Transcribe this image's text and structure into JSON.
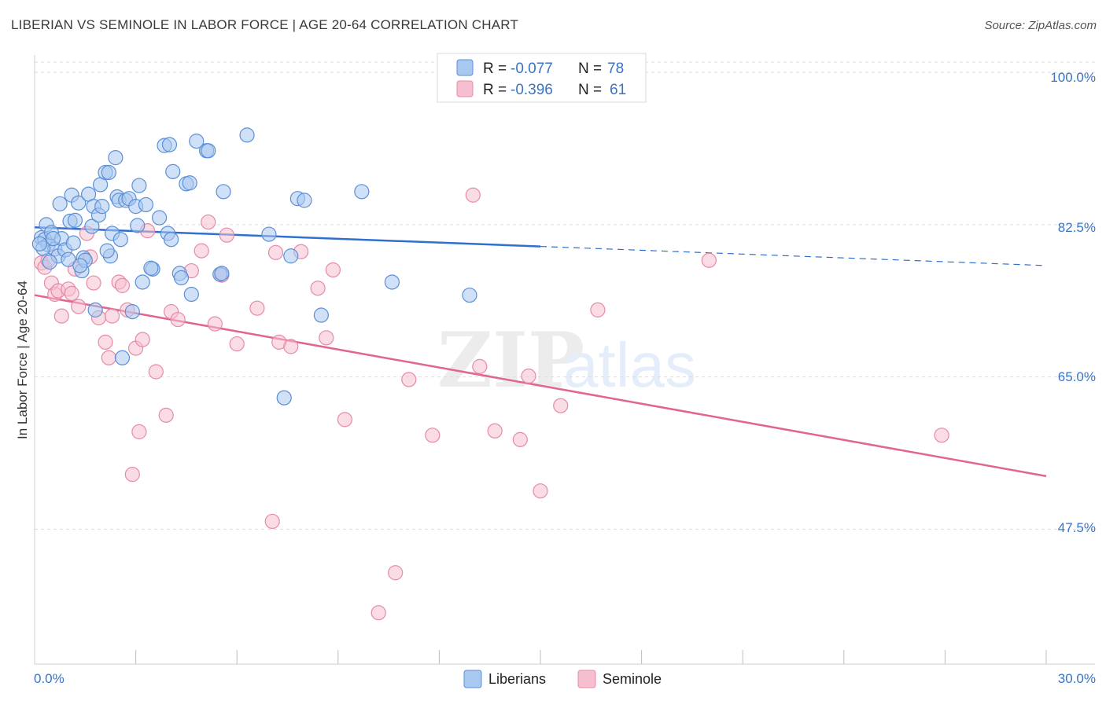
{
  "title": "LIBERIAN VS SEMINOLE IN LABOR FORCE | AGE 20-64 CORRELATION CHART",
  "source": "Source: ZipAtlas.com",
  "watermark": {
    "zip": "ZIP",
    "atlas": "atlas"
  },
  "colors": {
    "blue_fill": "#a9c8f0",
    "blue_stroke": "#5b8fd6",
    "blue_line": "#2f6fcf",
    "pink_fill": "#f6bfd0",
    "pink_stroke": "#e58aa8",
    "pink_line": "#e0658f",
    "tick_text": "#3b73c4",
    "grid": "#dcdcdc"
  },
  "legend": {
    "rows": [
      {
        "r_label": "R = ",
        "r_value": "-0.077",
        "n_label": "N = ",
        "n_value": "78"
      },
      {
        "r_label": "R = ",
        "r_value": "-0.396",
        "n_label": "N = ",
        "n_value": "61"
      }
    ]
  },
  "chart_data": {
    "type": "scatter",
    "title": "LIBERIAN VS SEMINOLE IN LABOR FORCE | AGE 20-64 CORRELATION CHART",
    "xlabel": "",
    "ylabel": "In Labor Force | Age 20-64",
    "xlim": [
      0,
      30
    ],
    "ylim": [
      32,
      102
    ],
    "x_tick_labels": [
      "0.0%",
      "30.0%"
    ],
    "y_ticks": [
      47.5,
      65.0,
      82.5,
      100.0
    ],
    "y_tick_labels": [
      "47.5%",
      "65.0%",
      "82.5%",
      "100.0%"
    ],
    "grid": true,
    "legend_position": "top-center",
    "series": [
      {
        "name": "Liberians",
        "color": "#a9c8f0",
        "trend": {
          "x": [
            0,
            15
          ],
          "y": [
            82.2,
            80.0
          ],
          "dashed_to": [
            30,
            77.8
          ]
        },
        "points": [
          [
            0.2,
            81.0
          ],
          [
            0.3,
            80.8
          ],
          [
            0.35,
            82.5
          ],
          [
            0.4,
            80.2
          ],
          [
            0.5,
            81.6
          ],
          [
            0.6,
            79.7
          ],
          [
            0.7,
            78.9
          ],
          [
            0.75,
            84.9
          ],
          [
            0.8,
            80.9
          ],
          [
            0.9,
            79.6
          ],
          [
            1.0,
            78.5
          ],
          [
            1.05,
            82.9
          ],
          [
            1.1,
            85.9
          ],
          [
            1.2,
            83.0
          ],
          [
            1.3,
            85.0
          ],
          [
            1.4,
            77.2
          ],
          [
            1.45,
            78.7
          ],
          [
            1.5,
            78.4
          ],
          [
            1.6,
            86.0
          ],
          [
            1.7,
            82.3
          ],
          [
            1.75,
            84.6
          ],
          [
            1.8,
            72.7
          ],
          [
            1.9,
            83.6
          ],
          [
            1.95,
            87.1
          ],
          [
            2.0,
            84.6
          ],
          [
            2.1,
            88.5
          ],
          [
            2.2,
            88.5
          ],
          [
            2.25,
            78.9
          ],
          [
            2.3,
            81.5
          ],
          [
            2.4,
            90.2
          ],
          [
            2.45,
            85.7
          ],
          [
            2.5,
            85.3
          ],
          [
            2.55,
            80.8
          ],
          [
            2.6,
            67.2
          ],
          [
            2.7,
            85.3
          ],
          [
            2.8,
            85.5
          ],
          [
            2.9,
            72.5
          ],
          [
            3.0,
            84.6
          ],
          [
            3.05,
            82.4
          ],
          [
            3.1,
            87.0
          ],
          [
            3.2,
            75.9
          ],
          [
            3.3,
            84.8
          ],
          [
            3.5,
            77.4
          ],
          [
            3.7,
            83.3
          ],
          [
            3.85,
            91.6
          ],
          [
            3.95,
            81.5
          ],
          [
            4.0,
            91.7
          ],
          [
            4.05,
            80.8
          ],
          [
            4.1,
            88.6
          ],
          [
            4.3,
            76.9
          ],
          [
            4.35,
            76.4
          ],
          [
            4.5,
            87.2
          ],
          [
            4.6,
            87.3
          ],
          [
            4.65,
            74.5
          ],
          [
            4.8,
            92.1
          ],
          [
            5.1,
            91.0
          ],
          [
            5.15,
            91.0
          ],
          [
            5.5,
            76.8
          ],
          [
            5.55,
            76.9
          ],
          [
            5.6,
            86.3
          ],
          [
            6.3,
            92.8
          ],
          [
            6.95,
            81.4
          ],
          [
            7.4,
            62.6
          ],
          [
            7.6,
            78.9
          ],
          [
            7.8,
            85.5
          ],
          [
            8.0,
            85.3
          ],
          [
            8.5,
            72.1
          ],
          [
            9.7,
            86.3
          ],
          [
            10.6,
            75.9
          ],
          [
            12.9,
            74.4
          ],
          [
            0.25,
            79.8
          ],
          [
            0.55,
            80.9
          ],
          [
            1.15,
            80.4
          ],
          [
            2.15,
            79.5
          ],
          [
            0.15,
            80.3
          ],
          [
            0.45,
            78.2
          ],
          [
            1.35,
            77.8
          ],
          [
            3.45,
            77.5
          ]
        ]
      },
      {
        "name": "Seminole",
        "color": "#f6bfd0",
        "trend": {
          "x": [
            0,
            30
          ],
          "y": [
            74.4,
            53.6
          ]
        },
        "points": [
          [
            0.2,
            78.1
          ],
          [
            0.3,
            77.6
          ],
          [
            0.4,
            78.4
          ],
          [
            0.5,
            75.8
          ],
          [
            0.6,
            74.5
          ],
          [
            0.7,
            74.9
          ],
          [
            0.8,
            72.0
          ],
          [
            1.0,
            75.1
          ],
          [
            1.1,
            74.6
          ],
          [
            1.2,
            77.4
          ],
          [
            1.3,
            73.1
          ],
          [
            1.55,
            81.5
          ],
          [
            1.65,
            78.8
          ],
          [
            1.75,
            75.8
          ],
          [
            1.9,
            71.8
          ],
          [
            2.1,
            69.0
          ],
          [
            2.2,
            67.2
          ],
          [
            2.3,
            72.0
          ],
          [
            2.5,
            75.9
          ],
          [
            2.6,
            75.5
          ],
          [
            2.75,
            72.7
          ],
          [
            2.9,
            53.8
          ],
          [
            3.0,
            68.3
          ],
          [
            3.1,
            58.7
          ],
          [
            3.2,
            69.3
          ],
          [
            3.35,
            81.8
          ],
          [
            3.6,
            65.6
          ],
          [
            3.9,
            60.6
          ],
          [
            4.05,
            72.5
          ],
          [
            4.25,
            71.6
          ],
          [
            4.65,
            77.2
          ],
          [
            4.95,
            79.5
          ],
          [
            5.15,
            82.8
          ],
          [
            5.35,
            71.1
          ],
          [
            5.55,
            76.7
          ],
          [
            5.7,
            81.3
          ],
          [
            6.0,
            68.8
          ],
          [
            6.6,
            72.9
          ],
          [
            7.05,
            48.4
          ],
          [
            7.15,
            79.3
          ],
          [
            7.25,
            69.0
          ],
          [
            7.6,
            68.5
          ],
          [
            7.9,
            79.4
          ],
          [
            8.4,
            75.2
          ],
          [
            8.65,
            69.5
          ],
          [
            8.85,
            77.3
          ],
          [
            9.2,
            60.1
          ],
          [
            10.2,
            37.9
          ],
          [
            10.7,
            42.5
          ],
          [
            11.1,
            64.7
          ],
          [
            11.8,
            58.3
          ],
          [
            13.0,
            85.9
          ],
          [
            13.2,
            66.2
          ],
          [
            13.65,
            58.8
          ],
          [
            14.4,
            57.8
          ],
          [
            14.65,
            65.1
          ],
          [
            15.0,
            51.9
          ],
          [
            15.6,
            61.7
          ],
          [
            16.7,
            72.7
          ],
          [
            20.0,
            78.4
          ],
          [
            26.9,
            58.3
          ]
        ]
      }
    ]
  },
  "bottom_legend": [
    "Liberians",
    "Seminole"
  ]
}
